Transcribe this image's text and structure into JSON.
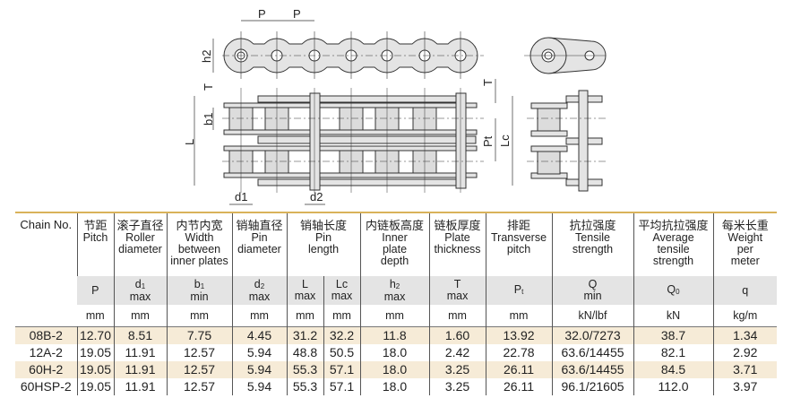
{
  "diagram": {
    "labels": {
      "p1": "P",
      "p2": "P",
      "h2": "h2",
      "t_left": "T",
      "b1": "b1",
      "l": "L",
      "d1": "d1",
      "d2": "d2",
      "t_right": "T",
      "pt": "Pt",
      "lc": "Lc"
    }
  },
  "table": {
    "chain_header": "Chain No.",
    "columns": [
      {
        "zh": "节距",
        "en": [
          "Pitch"
        ],
        "symbol": "P",
        "sub": "",
        "qual": "",
        "unit": "mm"
      },
      {
        "zh": "滚子直径",
        "en": [
          "Roller",
          "diameter"
        ],
        "symbol": "d",
        "sub": "1",
        "qual": "max",
        "unit": "mm"
      },
      {
        "zh": "内节内宽",
        "en": [
          "Width",
          "between",
          "inner plates"
        ],
        "symbol": "b",
        "sub": "1",
        "qual": "min",
        "unit": "mm"
      },
      {
        "zh": "销轴直径",
        "en": [
          "Pin",
          "diameter"
        ],
        "symbol": "d",
        "sub": "2",
        "qual": "max",
        "unit": "mm"
      },
      {
        "zh": "销轴长度",
        "en": [
          "Pin",
          "length"
        ],
        "symbol": "L",
        "sub": "",
        "qual": "max",
        "unit": "mm",
        "symbol2": "Lc",
        "qual2": "max",
        "unit2": "mm"
      },
      {
        "zh": "内链板高度",
        "en": [
          "Inner",
          "plate",
          "depth"
        ],
        "symbol": "h",
        "sub": "2",
        "qual": "max",
        "unit": "mm"
      },
      {
        "zh": "链板厚度",
        "en": [
          "Plate",
          "thickness"
        ],
        "symbol": "T",
        "sub": "",
        "qual": "max",
        "unit": "mm"
      },
      {
        "zh": "排距",
        "en": [
          "Transverse",
          "pitch"
        ],
        "symbol": "P",
        "sub": "t",
        "qual": "",
        "unit": "mm"
      },
      {
        "zh": "抗拉强度",
        "en": [
          "Tensile",
          "strength"
        ],
        "symbol": "Q",
        "sub": "",
        "qual": "min",
        "unit": "kN/lbf"
      },
      {
        "zh": "平均抗拉强度",
        "en": [
          "Average",
          "tensile",
          "strength"
        ],
        "symbol": "Q",
        "sub": "0",
        "qual": "",
        "unit": "kN"
      },
      {
        "zh": "每米长重",
        "en": [
          "Weight",
          "per",
          "meter"
        ],
        "symbol": "q",
        "sub": "",
        "qual": "",
        "unit": "kg/m"
      }
    ],
    "rows": [
      [
        "08B-2",
        "12.70",
        "8.51",
        "7.75",
        "4.45",
        "31.2",
        "32.2",
        "11.8",
        "1.60",
        "13.92",
        "32.0/7273",
        "38.7",
        "1.34"
      ],
      [
        "12A-2",
        "19.05",
        "11.91",
        "12.57",
        "5.94",
        "48.8",
        "50.5",
        "18.0",
        "2.42",
        "22.78",
        "63.6/14455",
        "82.1",
        "2.92"
      ],
      [
        "60H-2",
        "19.05",
        "11.91",
        "12.57",
        "5.94",
        "55.3",
        "57.1",
        "18.0",
        "3.25",
        "26.11",
        "63.6/14455",
        "84.5",
        "3.71"
      ],
      [
        "60HSP-2",
        "19.05",
        "11.91",
        "12.57",
        "5.94",
        "55.3",
        "57.1",
        "18.0",
        "3.25",
        "26.11",
        "96.1/21605",
        "112.0",
        "3.97"
      ]
    ],
    "colors": {
      "header_rule": "#d9b25a",
      "symbol_band": "#e4e4e4",
      "alt_row": "#f6ebd7"
    }
  }
}
